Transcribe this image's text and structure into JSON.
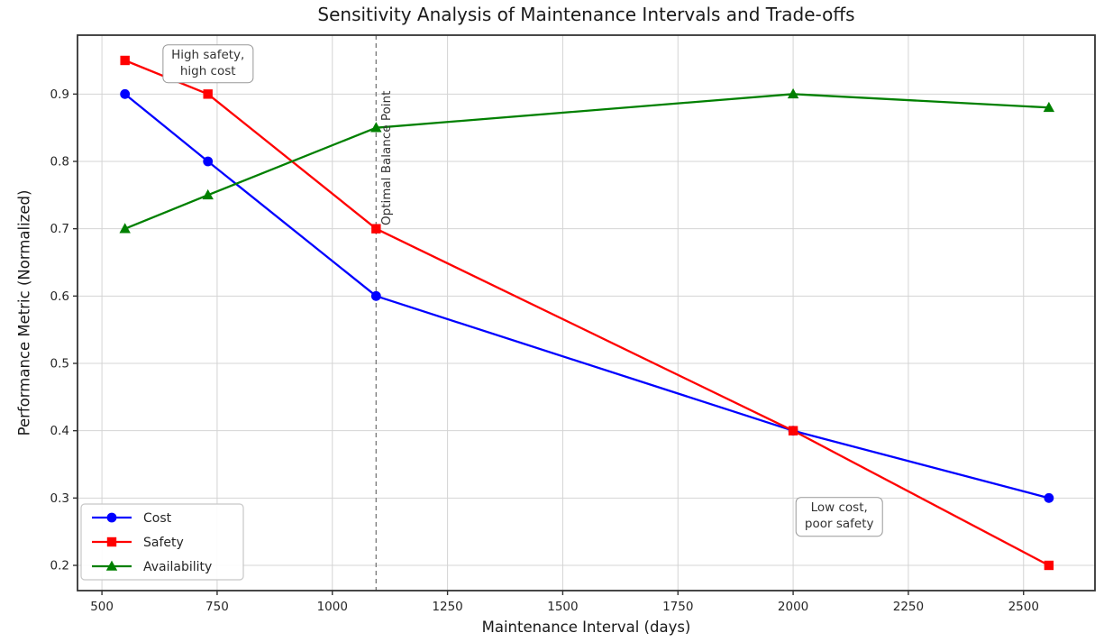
{
  "colors": {
    "background": "#ffffff",
    "text": "#262626",
    "grid": "#d4d4d4",
    "spine": "#333333",
    "vline": "#7f7f7f",
    "cost": "#0000ff",
    "safety": "#ff0000",
    "availability": "#008000"
  },
  "chart_data": {
    "type": "line",
    "title": "Sensitivity Analysis of Maintenance Intervals and Trade-offs",
    "xlabel": "Maintenance Interval (days)",
    "ylabel": "Performance Metric (Normalized)",
    "x": [
      550,
      730,
      1095,
      2000,
      2555
    ],
    "series": [
      {
        "name": "Cost",
        "color": "#0000ff",
        "marker": "circle",
        "values": [
          0.9,
          0.8,
          0.6,
          0.4,
          0.3
        ]
      },
      {
        "name": "Safety",
        "color": "#ff0000",
        "marker": "square",
        "values": [
          0.95,
          0.9,
          0.7,
          0.4,
          0.2
        ]
      },
      {
        "name": "Availability",
        "color": "#008000",
        "marker": "triangle",
        "values": [
          0.7,
          0.75,
          0.85,
          0.9,
          0.88
        ]
      }
    ],
    "xticks": [
      500,
      750,
      1000,
      1250,
      1500,
      1750,
      2000,
      2250,
      2500
    ],
    "yticks": [
      0.2,
      0.3,
      0.4,
      0.5,
      0.6,
      0.7,
      0.8,
      0.9
    ],
    "xlim": [
      447,
      2655
    ],
    "ylim": [
      0.1625,
      0.9875
    ],
    "grid": true,
    "legend_position": "lower left",
    "vline": {
      "x": 1095,
      "style": "dashed",
      "label": "Optimal Balance Point",
      "label_x": 1120,
      "label_y": 0.705
    },
    "annotations": [
      {
        "text": "High safety,\nhigh cost",
        "x": 730,
        "y": 0.945
      },
      {
        "text": "Low cost,\npoor safety",
        "x": 2100,
        "y": 0.272
      }
    ]
  }
}
